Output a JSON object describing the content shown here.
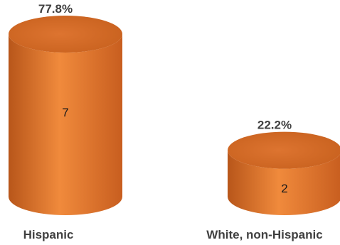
{
  "chart_data": {
    "type": "bar",
    "style": "3d-cylinder",
    "categories": [
      "Hispanic",
      "White, non-Hispanic"
    ],
    "values": [
      7,
      2
    ],
    "percent_labels": [
      "77.8%",
      "22.2%"
    ],
    "title": "",
    "xlabel": "",
    "ylabel": "",
    "ylim": [
      0,
      7
    ],
    "grid": false,
    "legend": "none",
    "colors": {
      "body_left": "#B8561A",
      "body_mid": "#F08A3C",
      "body_right": "#C85E1F",
      "top_face": "#C9621F",
      "top_face_light": "#DD7430"
    }
  }
}
